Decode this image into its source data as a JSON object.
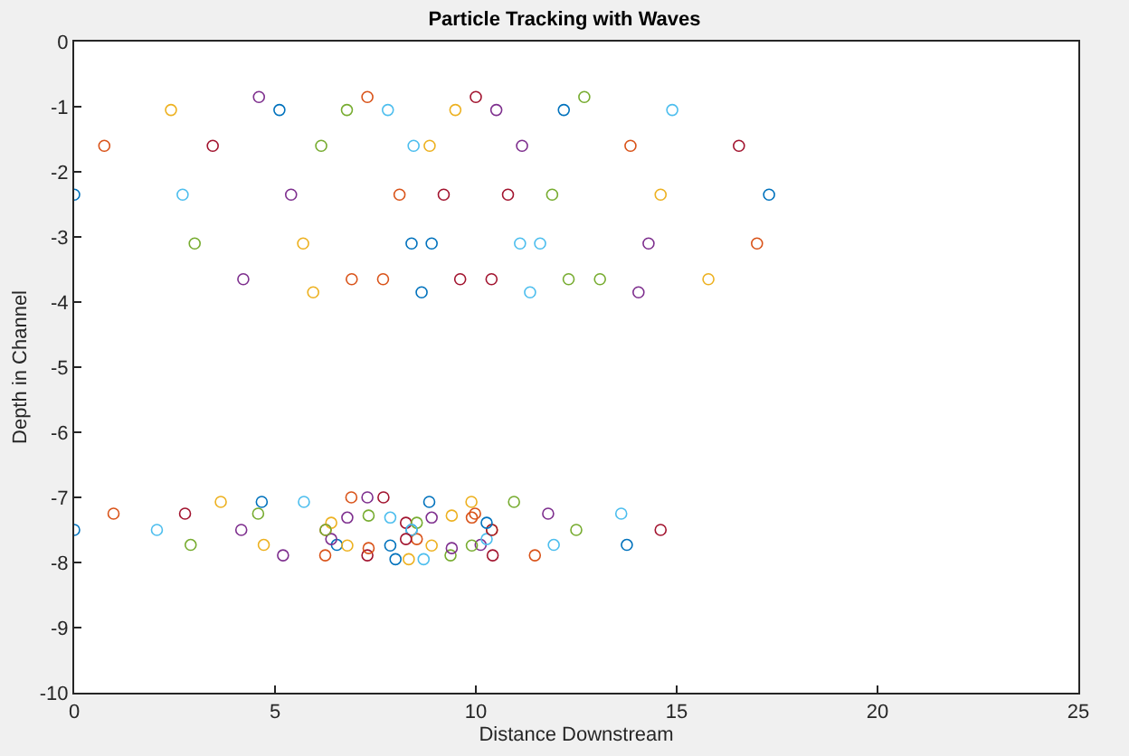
{
  "chart_data": {
    "type": "scatter",
    "title": "Particle Tracking with Waves",
    "xlabel": "Distance Downstream",
    "ylabel": "Depth in Channel",
    "xlim": [
      0,
      25
    ],
    "xticks": [
      0,
      5,
      10,
      15,
      20,
      25
    ],
    "ylim": [
      -10,
      0
    ],
    "yticks": [
      -10,
      -9,
      -8,
      -7,
      -6,
      -5,
      -4,
      -3,
      -2,
      -1,
      0
    ],
    "grid": false,
    "marker": "circle",
    "series": [
      {
        "x": [
          0,
          0.75,
          2.41,
          4.6,
          6.79,
          8.45,
          9.2,
          8.9,
          7.69,
          5.95,
          4.21,
          3.0,
          2.7,
          3.45,
          5.11,
          7.3,
          9.49,
          11.15,
          11.9,
          11.6,
          10.39,
          8.65,
          6.91,
          5.7,
          5.4,
          6.15,
          7.81,
          10.0,
          12.19,
          13.85,
          14.6,
          14.3,
          13.09,
          11.35,
          9.61,
          8.4,
          8.1,
          8.85,
          10.51,
          12.7,
          14.89,
          16.55,
          17.3,
          17.0,
          15.79,
          14.05,
          12.31,
          11.1,
          10.8
        ],
        "values": [
          -2.35,
          -1.6,
          -1.05,
          -0.85,
          -1.05,
          -1.6,
          -2.35,
          -3.1,
          -3.65,
          -3.85,
          -3.65,
          -3.1,
          -2.35,
          -1.6,
          -1.05,
          -0.85,
          -1.05,
          -1.6,
          -2.35,
          -3.1,
          -3.65,
          -3.85,
          -3.65,
          -3.1,
          -2.35,
          -1.6,
          -1.05,
          -0.85,
          -1.05,
          -1.6,
          -2.35,
          -3.1,
          -3.65,
          -3.85,
          -3.65,
          -3.1,
          -2.35,
          -1.6,
          -1.05,
          -0.85,
          -1.05,
          -1.6,
          -2.35,
          -3.1,
          -3.65,
          -3.85,
          -3.65,
          -3.1,
          -2.35
        ],
        "colors": [
          "#0072bd",
          "#d95319",
          "#edb120",
          "#7e2f8e",
          "#77ac30",
          "#4dbeee",
          "#a2142f",
          "#0072bd",
          "#d95319",
          "#edb120",
          "#7e2f8e",
          "#77ac30",
          "#4dbeee",
          "#a2142f",
          "#0072bd",
          "#d95319",
          "#edb120",
          "#7e2f8e",
          "#77ac30",
          "#4dbeee",
          "#a2142f",
          "#0072bd",
          "#d95319",
          "#edb120",
          "#7e2f8e",
          "#77ac30",
          "#4dbeee",
          "#a2142f",
          "#0072bd",
          "#d95319",
          "#edb120",
          "#7e2f8e",
          "#77ac30",
          "#4dbeee",
          "#a2142f",
          "#0072bd",
          "#d95319",
          "#edb120",
          "#7e2f8e",
          "#77ac30",
          "#4dbeee",
          "#a2142f",
          "#0072bd",
          "#d95319",
          "#edb120",
          "#7e2f8e",
          "#77ac30",
          "#4dbeee",
          "#a2142f"
        ]
      },
      {
        "x": [
          0,
          0.98,
          3.65,
          7.3,
          10.95,
          13.62,
          14.6,
          13.76,
          11.47,
          8.33,
          5.2,
          2.9,
          2.06,
          2.76,
          4.67,
          6.9,
          9.89,
          11.8,
          12.5,
          11.94,
          10.42,
          8.0,
          6.25,
          4.72,
          4.16,
          4.58,
          5.72,
          7.7,
          8.84,
          9.98,
          10.4,
          10.12,
          9.37,
          8.7,
          7.3,
          6.54,
          6.26,
          6.4,
          6.8,
          7.33,
          7.87,
          8.26,
          8.4,
          8.53,
          8.9,
          9.4,
          9.9,
          10.27,
          10.4,
          10.27,
          9.9,
          9.4,
          8.9,
          8.53,
          8.4,
          8.26,
          7.87,
          7.33,
          6.8,
          6.4,
          6.26
        ],
        "values": [
          -7.5,
          -7.25,
          -7.07,
          -7.0,
          -7.07,
          -7.25,
          -7.5,
          -7.73,
          -7.89,
          -7.95,
          -7.89,
          -7.73,
          -7.5,
          -7.25,
          -7.07,
          -7.0,
          -7.07,
          -7.25,
          -7.5,
          -7.73,
          -7.89,
          -7.95,
          -7.89,
          -7.73,
          -7.5,
          -7.25,
          -7.07,
          -7.0,
          -7.07,
          -7.25,
          -7.5,
          -7.73,
          -7.89,
          -7.95,
          -7.89,
          -7.73,
          -7.5,
          -7.39,
          -7.31,
          -7.28,
          -7.31,
          -7.39,
          -7.5,
          -7.64,
          -7.74,
          -7.78,
          -7.74,
          -7.64,
          -7.5,
          -7.39,
          -7.31,
          -7.28,
          -7.31,
          -7.39,
          -7.5,
          -7.64,
          -7.74,
          -7.78,
          -7.74,
          -7.64,
          -7.5
        ],
        "colors": [
          "#0072bd",
          "#d95319",
          "#edb120",
          "#7e2f8e",
          "#77ac30",
          "#4dbeee",
          "#a2142f",
          "#0072bd",
          "#d95319",
          "#edb120",
          "#7e2f8e",
          "#77ac30",
          "#4dbeee",
          "#a2142f",
          "#0072bd",
          "#d95319",
          "#edb120",
          "#7e2f8e",
          "#77ac30",
          "#4dbeee",
          "#a2142f",
          "#0072bd",
          "#d95319",
          "#edb120",
          "#7e2f8e",
          "#77ac30",
          "#4dbeee",
          "#a2142f",
          "#0072bd",
          "#d95319",
          "#edb120",
          "#7e2f8e",
          "#77ac30",
          "#4dbeee",
          "#a2142f",
          "#0072bd",
          "#d95319",
          "#edb120",
          "#7e2f8e",
          "#77ac30",
          "#4dbeee",
          "#a2142f",
          "#0072bd",
          "#d95319",
          "#edb120",
          "#7e2f8e",
          "#77ac30",
          "#4dbeee",
          "#a2142f",
          "#0072bd",
          "#d95319",
          "#edb120",
          "#7e2f8e",
          "#77ac30",
          "#4dbeee",
          "#a2142f",
          "#0072bd",
          "#d95319",
          "#edb120",
          "#7e2f8e",
          "#77ac30"
        ]
      }
    ]
  }
}
